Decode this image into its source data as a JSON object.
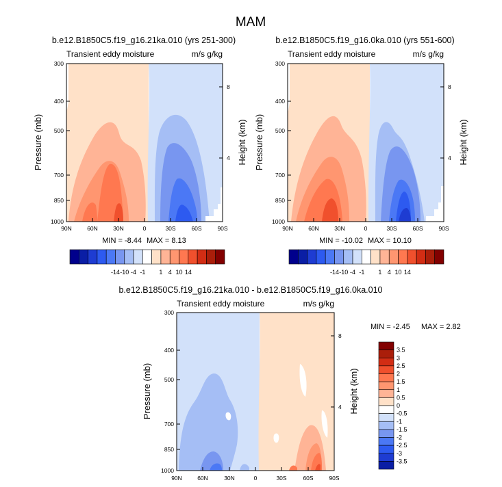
{
  "main_title": "MAM",
  "panels": [
    {
      "id": "p1",
      "title": "b.e12.B1850C5.f19_g16.21ka.010 (yrs 251-300)",
      "left_label": "Transient eddy moisture",
      "right_label": "m/s g/kg",
      "min_label": "MIN =  -8.44",
      "max_label": "MAX =  8.13"
    },
    {
      "id": "p2",
      "title": "b.e12.B1850C5.f19_g16.0ka.010 (yrs 551-600)",
      "left_label": "Transient eddy moisture",
      "right_label": "m/s g/kg",
      "min_label": "MIN = -10.02",
      "max_label": "MAX =  10.10"
    },
    {
      "id": "p3",
      "title": "b.e12.B1850C5.f19_g16.21ka.010 - b.e12.B1850C5.f19_g16.0ka.010",
      "left_label": "Transient eddy moisture",
      "right_label": "m/s g/kg",
      "min_label": "MIN =  -2.45",
      "max_label": "MAX =  2.82"
    }
  ],
  "axes": {
    "ylabel": "Pressure (mb)",
    "y2label": "Height (km)",
    "pressure_ticks": [
      "300",
      "400",
      "500",
      "700",
      "850",
      "1000"
    ],
    "height_ticks": [
      "8",
      "4"
    ],
    "lat_ticks": [
      "90N",
      "60N",
      "30N",
      "0",
      "30S",
      "60S",
      "90S"
    ]
  },
  "colorbar_top": {
    "labels": [
      "-14",
      "-10",
      "-4",
      "-1",
      "1",
      "4",
      "10",
      "14"
    ],
    "colors": [
      "#00008C",
      "#0A1EA5",
      "#1E3CD2",
      "#2D5AF0",
      "#4B78F5",
      "#7896F0",
      "#A5BEF5",
      "#D2E1FA",
      "#FFFFFF",
      "#FFE1C8",
      "#FFB496",
      "#FF9670",
      "#FF7850",
      "#F0502D",
      "#D22D14",
      "#AA1E0A",
      "#820000"
    ]
  },
  "colorbar_diff": {
    "labels": [
      "3.5",
      "3",
      "2.5",
      "2",
      "1.5",
      "1",
      "0.5",
      "0",
      "-0.5",
      "-1",
      "-1.5",
      "-2",
      "-2.5",
      "-3",
      "-3.5"
    ],
    "colors": [
      "#820000",
      "#AA1E0A",
      "#D22D14",
      "#F0502D",
      "#FF7850",
      "#FF9670",
      "#FFB496",
      "#FFE1C8",
      "#FFFFFF",
      "#D2E1FA",
      "#A5BEF5",
      "#7896F0",
      "#4B78F5",
      "#2D5AF0",
      "#1E3CD2",
      "#0A1EA5"
    ]
  },
  "chart_data": [
    {
      "type": "heatmap",
      "title": "b.e12.B1850C5.f19_g16.21ka.010 (yrs 251-300)",
      "xlabel": "",
      "ylabel": "Pressure (mb)",
      "y2label": "Height (km)",
      "x_ticks": [
        "90N",
        "60N",
        "30N",
        "0",
        "30S",
        "60S",
        "90S"
      ],
      "y_ticks": [
        300,
        400,
        500,
        700,
        850,
        1000
      ],
      "ylim": [
        1000,
        300
      ],
      "contour_levels": [
        -14,
        -10,
        -4,
        -1,
        1,
        4,
        10,
        14
      ],
      "min": -8.44,
      "max": 8.13
    },
    {
      "type": "heatmap",
      "title": "b.e12.B1850C5.f19_g16.0ka.010 (yrs 551-600)",
      "xlabel": "",
      "ylabel": "Pressure (mb)",
      "y2label": "Height (km)",
      "x_ticks": [
        "90N",
        "60N",
        "30N",
        "0",
        "30S",
        "60S",
        "90S"
      ],
      "y_ticks": [
        300,
        400,
        500,
        700,
        850,
        1000
      ],
      "ylim": [
        1000,
        300
      ],
      "contour_levels": [
        -14,
        -10,
        -4,
        -1,
        1,
        4,
        10,
        14
      ],
      "min": -10.02,
      "max": 10.1
    },
    {
      "type": "heatmap",
      "title": "b.e12.B1850C5.f19_g16.21ka.010 - b.e12.B1850C5.f19_g16.0ka.010",
      "xlabel": "",
      "ylabel": "Pressure (mb)",
      "y2label": "Height (km)",
      "x_ticks": [
        "90N",
        "60N",
        "30N",
        "0",
        "30S",
        "60S",
        "90S"
      ],
      "y_ticks": [
        300,
        400,
        500,
        700,
        850,
        1000
      ],
      "ylim": [
        1000,
        300
      ],
      "contour_levels": [
        -3.5,
        -3,
        -2.5,
        -2,
        -1.5,
        -1,
        -0.5,
        0,
        0.5,
        1,
        1.5,
        2,
        2.5,
        3,
        3.5
      ],
      "min": -2.45,
      "max": 2.82
    }
  ]
}
